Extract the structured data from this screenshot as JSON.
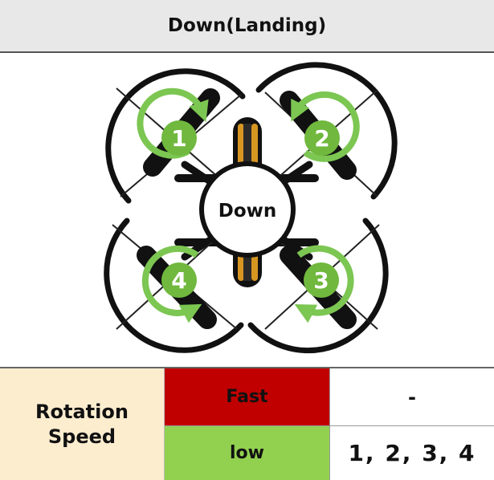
{
  "title": "Down(Landing)",
  "center_label": "Down",
  "motors": [
    {
      "number": "1"
    },
    {
      "number": "2"
    },
    {
      "number": "3"
    },
    {
      "number": "4"
    }
  ],
  "colors": {
    "header_bg": "#e8e8e8",
    "rotation_cell_bg": "#fdedcf",
    "fast_bg": "#c00000",
    "low_bg": "#92d050",
    "arrow_green": "#7cc652",
    "motor_badge": "#70b83e",
    "frame_orange": "#d79522"
  },
  "table": {
    "row_header": "Rotation Speed",
    "rows": [
      {
        "label": "Fast",
        "value": "-"
      },
      {
        "label": "low",
        "value": "1, 2, 3, 4"
      }
    ]
  }
}
